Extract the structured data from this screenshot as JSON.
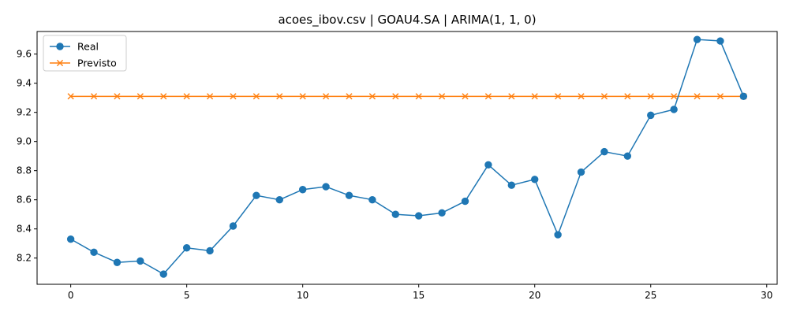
{
  "chart_data": {
    "type": "line",
    "title": "acoes_ibov.csv | GOAU4.SA | ARIMA(1, 1, 0)",
    "xlabel": "",
    "ylabel": "",
    "xlim": [
      -1.45,
      30.45
    ],
    "ylim": [
      8.02,
      9.755
    ],
    "xticks": [
      0,
      5,
      10,
      15,
      20,
      25,
      30
    ],
    "xtick_labels": [
      "0",
      "5",
      "10",
      "15",
      "20",
      "25",
      "30"
    ],
    "yticks": [
      8.2,
      8.4,
      8.6,
      8.8,
      9.0,
      9.2,
      9.4,
      9.6
    ],
    "ytick_labels": [
      "8.2",
      "8.4",
      "8.6",
      "8.8",
      "9.0",
      "9.2",
      "9.4",
      "9.6"
    ],
    "grid": false,
    "legend_position": "top-left",
    "x": [
      0,
      1,
      2,
      3,
      4,
      5,
      6,
      7,
      8,
      9,
      10,
      11,
      12,
      13,
      14,
      15,
      16,
      17,
      18,
      19,
      20,
      21,
      22,
      23,
      24,
      25,
      26,
      27,
      28,
      29
    ],
    "series": [
      {
        "name": "Real",
        "color": "#1f77b4",
        "marker": "circle",
        "values": [
          8.33,
          8.24,
          8.17,
          8.18,
          8.09,
          8.27,
          8.25,
          8.42,
          8.63,
          8.6,
          8.67,
          8.69,
          8.63,
          8.6,
          8.5,
          8.49,
          8.51,
          8.59,
          8.84,
          8.7,
          8.74,
          8.36,
          8.79,
          8.93,
          8.9,
          9.18,
          9.22,
          9.7,
          9.69,
          9.31
        ]
      },
      {
        "name": "Previsto",
        "color": "#ff7f0e",
        "marker": "x",
        "values": [
          9.31,
          9.31,
          9.31,
          9.31,
          9.31,
          9.31,
          9.31,
          9.31,
          9.31,
          9.31,
          9.31,
          9.31,
          9.31,
          9.31,
          9.31,
          9.31,
          9.31,
          9.31,
          9.31,
          9.31,
          9.31,
          9.31,
          9.31,
          9.31,
          9.31,
          9.31,
          9.31,
          9.31,
          9.31,
          9.31
        ]
      }
    ]
  }
}
